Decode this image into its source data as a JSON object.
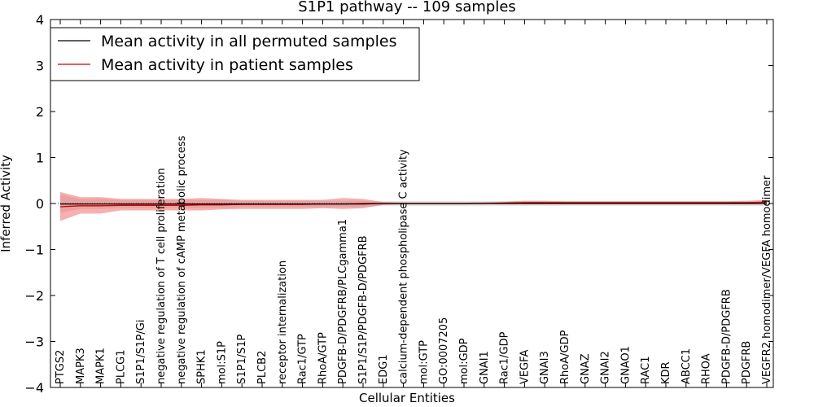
{
  "chart_data": {
    "type": "line",
    "title": "S1P1 pathway -- 109 samples",
    "xlabel": "Cellular Entities",
    "ylabel": "Inferred Activity",
    "ylim": [
      -4,
      4
    ],
    "yticks": [
      4,
      3,
      2,
      1,
      0,
      -1,
      -2,
      -3,
      -4
    ],
    "ytick_labels": [
      "4",
      "3",
      "2",
      "1",
      "0",
      "−1",
      "−2",
      "−3",
      "−4"
    ],
    "legend_placement": "top-left",
    "categories": [
      "PTGS2",
      "MAPK3",
      "MAPK1",
      "PLCG1",
      "S1P1/S1P/Gi",
      "negative regulation of T cell proliferation",
      "negative regulation of cAMP metabolic process",
      "SPHK1",
      "mol:S1P",
      "S1P1/S1P",
      "PLCB2",
      "receptor internalization",
      "Rac1/GTP",
      "RhoA/GTP",
      "PDGFB-D/PDGFRB/PLCgamma1",
      "S1P1/S1P/PDGFB-D/PDGFRB",
      "EDG1",
      "calcium-dependent phospholipase C activity",
      "mol:GTP",
      "GO:0007205",
      "mol:GDP",
      "GNAI1",
      "Rac1/GDP",
      "VEGFA",
      "GNAI3",
      "RhoA/GDP",
      "GNAZ",
      "GNAI2",
      "GNAO1",
      "RAC1",
      "KDR",
      "ABCC1",
      "RHOA",
      "PDGFB-D/PDGFRB",
      "PDGFRB",
      "VEGFR2 homodimer/VEGFA homodimer"
    ],
    "series": [
      {
        "name": "Mean activity in all permuted samples",
        "color": "#000000",
        "values": [
          -0.01,
          -0.01,
          -0.01,
          -0.01,
          -0.01,
          -0.01,
          -0.01,
          -0.01,
          -0.01,
          -0.01,
          -0.01,
          -0.01,
          -0.01,
          -0.01,
          -0.01,
          -0.01,
          0,
          0,
          0,
          0,
          0,
          0,
          0,
          0,
          0,
          0,
          0,
          0,
          0,
          0,
          0,
          0,
          0,
          0,
          0,
          0
        ],
        "band_upper": [
          0.2,
          0.1,
          0.1,
          0.08,
          0.08,
          0.08,
          0.08,
          0.08,
          0.08,
          0.06,
          0.06,
          0.06,
          0.06,
          0.06,
          0.06,
          0.06,
          0.05,
          0.05,
          0.05,
          0.05,
          0.05,
          0.05,
          0.05,
          0.05,
          0.05,
          0.05,
          0.05,
          0.05,
          0.05,
          0.05,
          0.05,
          0.05,
          0.05,
          0.05,
          0.05,
          0.05
        ],
        "band_lower": [
          -0.2,
          -0.12,
          -0.12,
          -0.1,
          -0.1,
          -0.1,
          -0.1,
          -0.1,
          -0.1,
          -0.08,
          -0.08,
          -0.08,
          -0.08,
          -0.08,
          -0.08,
          -0.08,
          -0.05,
          -0.05,
          -0.05,
          -0.05,
          -0.05,
          -0.05,
          -0.05,
          -0.05,
          -0.05,
          -0.05,
          -0.05,
          -0.05,
          -0.05,
          -0.05,
          -0.05,
          -0.05,
          -0.05,
          -0.05,
          -0.05,
          -0.05
        ]
      },
      {
        "name": "Mean activity in patient samples",
        "color": "#cc0000",
        "values": [
          -0.07,
          -0.05,
          -0.05,
          -0.04,
          -0.04,
          -0.04,
          -0.04,
          -0.03,
          -0.03,
          -0.02,
          -0.02,
          -0.02,
          -0.02,
          -0.01,
          -0.01,
          0,
          0,
          0,
          0,
          0,
          0,
          0,
          0.01,
          0.02,
          0.02,
          0.02,
          0.02,
          0.02,
          0.02,
          0.02,
          0.02,
          0.02,
          0.02,
          0.02,
          0.02,
          0.03
        ],
        "band_upper": [
          0.25,
          0.14,
          0.14,
          0.1,
          0.1,
          0.1,
          0.1,
          0.12,
          0.1,
          0.08,
          0.08,
          0.08,
          0.08,
          0.08,
          0.12,
          0.1,
          0.03,
          0.02,
          0.02,
          0.02,
          0.02,
          0.03,
          0.04,
          0.06,
          0.06,
          0.05,
          0.05,
          0.05,
          0.05,
          0.05,
          0.05,
          0.05,
          0.05,
          0.05,
          0.06,
          0.08
        ],
        "band_lower": [
          -0.38,
          -0.22,
          -0.22,
          -0.15,
          -0.15,
          -0.15,
          -0.15,
          -0.15,
          -0.13,
          -0.12,
          -0.12,
          -0.12,
          -0.12,
          -0.1,
          -0.12,
          -0.1,
          -0.03,
          -0.02,
          -0.02,
          -0.02,
          -0.02,
          -0.01,
          -0.01,
          -0.01,
          -0.01,
          -0.01,
          -0.01,
          -0.01,
          -0.01,
          -0.01,
          -0.01,
          -0.01,
          -0.01,
          -0.01,
          -0.01,
          -0.01
        ]
      }
    ]
  }
}
